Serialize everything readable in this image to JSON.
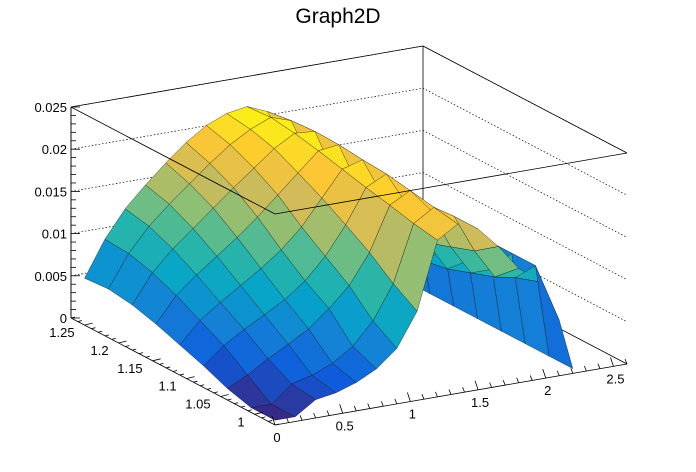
{
  "chart_data": {
    "type": "surface3d",
    "title": "Graph2D",
    "xlabel": "",
    "ylabel": "",
    "zlabel": "",
    "x_range": [
      0,
      2.6
    ],
    "y_range": [
      0.97,
      1.27
    ],
    "z_range": [
      0,
      0.025
    ],
    "x_ticks": [
      {
        "value": 0,
        "label": "0"
      },
      {
        "value": 0.5,
        "label": "0.5"
      },
      {
        "value": 1,
        "label": "1"
      },
      {
        "value": 1.5,
        "label": "1.5"
      },
      {
        "value": 2,
        "label": "2"
      },
      {
        "value": 2.5,
        "label": "2.5"
      }
    ],
    "y_ticks": [
      {
        "value": 1,
        "label": "1"
      },
      {
        "value": 1.05,
        "label": "1.05"
      },
      {
        "value": 1.1,
        "label": "1.1"
      },
      {
        "value": 1.15,
        "label": "1.15"
      },
      {
        "value": 1.2,
        "label": "1.2"
      },
      {
        "value": 1.25,
        "label": "1.25"
      }
    ],
    "z_ticks": [
      {
        "value": 0,
        "label": "0"
      },
      {
        "value": 0.005,
        "label": "0.005"
      },
      {
        "value": 0.01,
        "label": "0.01"
      },
      {
        "value": 0.015,
        "label": "0.015"
      },
      {
        "value": 0.02,
        "label": "0.02"
      },
      {
        "value": 0.025,
        "label": "0.025"
      }
    ],
    "grid": true,
    "colormap": [
      "#352a87",
      "#0f5cdd",
      "#1481d6",
      "#06a4ca",
      "#2eb7a4",
      "#87bf77",
      "#d1bb59",
      "#fec832",
      "#f9fb0e"
    ],
    "surface_x": [
      0.05,
      0.2,
      0.35,
      0.5,
      0.65,
      0.8,
      0.95,
      1.1,
      1.25,
      1.4,
      1.55,
      1.7,
      1.85,
      2.0,
      2.15,
      2.25
    ],
    "surface_y": [
      0.98,
      1.015,
      1.05,
      1.085,
      1.12,
      1.155,
      1.19,
      1.225,
      1.26
    ],
    "surface_z": [
      [
        0,
        0,
        0.0016,
        0.002,
        0.0028,
        0.004,
        0.006,
        0.01,
        0.018,
        0.0195,
        0.0185,
        0.016,
        0.013,
        0.011,
        0.006,
        0
      ],
      [
        0,
        0,
        0.002,
        0.0026,
        0.0036,
        0.0052,
        0.0078,
        0.0118,
        0.0185,
        0.02,
        0.0185,
        0.014,
        0.0105,
        0.01,
        0.011,
        0
      ],
      [
        0.0008,
        0.002,
        0.0035,
        0.0048,
        0.0062,
        0.0082,
        0.0105,
        0.014,
        0.0192,
        0.0205,
        0.0178,
        0.013,
        0.0095,
        0.0095,
        0.011,
        0
      ],
      [
        0.002,
        0.004,
        0.0055,
        0.0068,
        0.0082,
        0.01,
        0.0125,
        0.0158,
        0.0198,
        0.021,
        0.017,
        0.012,
        0.0085,
        0.009,
        0.011,
        0
      ],
      [
        0.003,
        0.0055,
        0.0072,
        0.0088,
        0.0104,
        0.0122,
        0.0145,
        0.0175,
        0.0205,
        0.0212,
        0.0165,
        0.0115,
        0.008,
        0.0088,
        0.0105,
        0
      ],
      [
        0.004,
        0.007,
        0.009,
        0.0108,
        0.0126,
        0.0146,
        0.0168,
        0.019,
        0.0212,
        0.0215,
        0.016,
        0.011,
        0.008,
        0.0085,
        0.01,
        0
      ],
      [
        0.0048,
        0.0082,
        0.0106,
        0.0126,
        0.0146,
        0.0166,
        0.0185,
        0.0204,
        0.0218,
        0.0216,
        0.0158,
        0.0112,
        0.0082,
        0.0085,
        0.0095,
        0
      ],
      [
        0.0052,
        0.009,
        0.0118,
        0.014,
        0.016,
        0.018,
        0.0198,
        0.0212,
        0.0222,
        0.0214,
        0.016,
        0.0115,
        0.0085,
        0.0085,
        0.009,
        0
      ],
      [
        0.005,
        0.0092,
        0.0124,
        0.0148,
        0.017,
        0.019,
        0.0206,
        0.0216,
        0.022,
        0.021,
        0.0165,
        0.012,
        0.009,
        0.0088,
        0.009,
        0
      ]
    ]
  }
}
